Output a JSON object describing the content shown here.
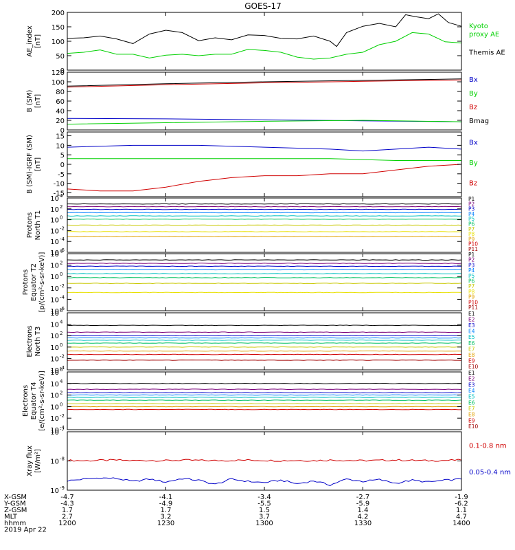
{
  "title": "GOES-17",
  "chart_data": [
    {
      "type": "line",
      "ylabel_lines": [
        "AE_index",
        "[nT]"
      ],
      "ylim": [
        0,
        200
      ],
      "yticks": [
        0,
        50,
        100,
        150,
        200
      ],
      "ytick_labels": [
        "0",
        "50",
        "100",
        "150",
        "200"
      ],
      "series": [
        {
          "name": "Kyoto proxy AE",
          "name_lines": [
            "Kyoto",
            "proxy AE"
          ],
          "color": "#00d000",
          "x": [
            0,
            5,
            10,
            15,
            20,
            25,
            30,
            35,
            40,
            45,
            50,
            55,
            60,
            65,
            70,
            75,
            80,
            85,
            90,
            95,
            100,
            105,
            110,
            115,
            120
          ],
          "y": [
            58,
            62,
            70,
            55,
            55,
            42,
            52,
            55,
            50,
            55,
            55,
            72,
            68,
            62,
            45,
            38,
            42,
            55,
            62,
            88,
            100,
            130,
            125,
            98,
            94
          ]
        },
        {
          "name": "Themis AE",
          "color": "#000000",
          "x": [
            0,
            5,
            10,
            15,
            20,
            25,
            30,
            35,
            40,
            45,
            50,
            55,
            60,
            65,
            70,
            75,
            80,
            82,
            85,
            90,
            95,
            100,
            103,
            106,
            110,
            113,
            116,
            120
          ],
          "y": [
            110,
            112,
            118,
            108,
            92,
            125,
            138,
            130,
            102,
            112,
            105,
            122,
            120,
            110,
            108,
            118,
            100,
            82,
            130,
            152,
            162,
            150,
            192,
            185,
            178,
            195,
            165,
            152
          ]
        }
      ]
    },
    {
      "type": "line",
      "ylabel_lines": [
        "B (SM)",
        "[nT]"
      ],
      "ylim": [
        0,
        120
      ],
      "yticks": [
        0,
        20,
        40,
        60,
        80,
        100,
        120
      ],
      "ytick_labels": [
        "0",
        "20",
        "40",
        "60",
        "80",
        "100",
        "120"
      ],
      "series": [
        {
          "name": "Bx",
          "color": "#0000c8",
          "x": [
            0,
            30,
            60,
            90,
            120
          ],
          "y": [
            24,
            23,
            21,
            19,
            17
          ]
        },
        {
          "name": "By",
          "color": "#00d000",
          "x": [
            0,
            30,
            60,
            90,
            120
          ],
          "y": [
            12,
            15,
            18,
            20,
            17
          ]
        },
        {
          "name": "Bz",
          "color": "#d00000",
          "x": [
            0,
            30,
            60,
            90,
            120
          ],
          "y": [
            89,
            94,
            98,
            101,
            104
          ]
        },
        {
          "name": "Bmag",
          "color": "#000000",
          "x": [
            0,
            30,
            60,
            90,
            120
          ],
          "y": [
            91,
            96,
            100,
            103,
            106
          ]
        }
      ]
    },
    {
      "type": "line",
      "ylabel_lines": [
        "B (SM)-IGRF (SM)",
        "[nT]"
      ],
      "ylim": [
        -17,
        17
      ],
      "yticks": [
        -15,
        -10,
        -5,
        0,
        5,
        10,
        15
      ],
      "ytick_labels": [
        "-15",
        "-10",
        "-5",
        "0",
        "5",
        "10",
        "15"
      ],
      "series": [
        {
          "name": "Bx",
          "color": "#0000c8",
          "x": [
            0,
            20,
            40,
            60,
            80,
            90,
            100,
            110,
            120
          ],
          "y": [
            9,
            10,
            10,
            9,
            8,
            7,
            8,
            9,
            8
          ]
        },
        {
          "name": "By",
          "color": "#00d000",
          "x": [
            0,
            20,
            40,
            60,
            80,
            100,
            120
          ],
          "y": [
            3,
            3,
            3,
            3,
            3,
            2,
            2
          ]
        },
        {
          "name": "Bz",
          "color": "#d00000",
          "x": [
            0,
            10,
            20,
            30,
            40,
            50,
            60,
            70,
            80,
            90,
            100,
            110,
            120
          ],
          "y": [
            -13,
            -14,
            -14,
            -12,
            -9,
            -7,
            -6,
            -6,
            -5,
            -5,
            -3,
            -1,
            0
          ]
        }
      ]
    },
    {
      "type": "line",
      "log": true,
      "ylabel_lines": [
        "Protons",
        "North T1"
      ],
      "ylim": [
        -6,
        4
      ],
      "yticks": [
        -6,
        -4,
        -2,
        0,
        2,
        4
      ],
      "ytick_labels": [
        "10",
        "10",
        "10",
        "10",
        "10",
        "10"
      ],
      "ytick_exp": [
        "-6",
        "-4",
        "-2",
        "0",
        "2",
        "4"
      ],
      "series": [
        {
          "name": "P1",
          "color": "#000000",
          "level": 2.9
        },
        {
          "name": "P2",
          "color": "#7a007a",
          "level": 2.4
        },
        {
          "name": "P3",
          "color": "#0000c8",
          "level": 1.9
        },
        {
          "name": "P4",
          "color": "#0080ff",
          "level": 1.3
        },
        {
          "name": "P5",
          "color": "#00c0c0",
          "level": 0.7
        },
        {
          "name": "P6",
          "color": "#00c060",
          "level": 0.1
        },
        {
          "name": "P7",
          "color": "#c8c800",
          "level": -1.0
        },
        {
          "name": "P8",
          "color": "#e8e000",
          "level": -2.2
        },
        {
          "name": "P9",
          "color": "#e0a000",
          "level": -3.1
        },
        {
          "name": "P10",
          "color": "#d00000",
          "level": -6.5
        },
        {
          "name": "P11",
          "color": "#a00000",
          "level": -6.5
        }
      ]
    },
    {
      "type": "line",
      "log": true,
      "ylabel_lines": [
        "Protons",
        "Equator T2",
        "[p/(cm²-s-sr-keV)]"
      ],
      "ylim": [
        -6,
        4
      ],
      "yticks": [
        -6,
        -4,
        -2,
        0,
        2,
        4
      ],
      "ytick_labels": [
        "10",
        "10",
        "10",
        "10",
        "10",
        "10"
      ],
      "ytick_exp": [
        "-6",
        "-4",
        "-2",
        "0",
        "2",
        "4"
      ],
      "series": [
        {
          "name": "P1",
          "color": "#000000",
          "level": 2.9
        },
        {
          "name": "P2",
          "color": "#7a007a",
          "level": 2.3
        },
        {
          "name": "P3",
          "color": "#0000c8",
          "level": 1.8
        },
        {
          "name": "P4",
          "color": "#0080ff",
          "level": 1.2
        },
        {
          "name": "P5",
          "color": "#00c0c0",
          "level": 0.5
        },
        {
          "name": "P6",
          "color": "#00c060",
          "level": -0.2
        },
        {
          "name": "P7",
          "color": "#c8c800",
          "level": -1.2
        },
        {
          "name": "P8",
          "color": "#e8e000",
          "level": -2.8
        },
        {
          "name": "P9",
          "color": "#e0a000",
          "level": -6.5
        },
        {
          "name": "P10",
          "color": "#d00000",
          "level": -6.5
        },
        {
          "name": "P11",
          "color": "#a00000",
          "level": -6.5
        }
      ]
    },
    {
      "type": "line",
      "log": true,
      "ylabel_lines": [
        "Electrons",
        "North T3"
      ],
      "ylim": [
        -4,
        6
      ],
      "yticks": [
        -4,
        -2,
        0,
        2,
        4,
        6
      ],
      "ytick_labels": [
        "10",
        "10",
        "10",
        "10",
        "10",
        "10"
      ],
      "ytick_exp": [
        "-4",
        "-2",
        "0",
        "2",
        "4",
        "6"
      ],
      "series": [
        {
          "name": "E1",
          "color": "#000000",
          "level": 3.8
        },
        {
          "name": "E2",
          "color": "#7a007a",
          "level": 2.6
        },
        {
          "name": "E3",
          "color": "#0000c8",
          "level": 2.0
        },
        {
          "name": "E4",
          "color": "#0080ff",
          "level": 1.6
        },
        {
          "name": "E5",
          "color": "#00c0c0",
          "level": 1.2
        },
        {
          "name": "E6",
          "color": "#00c060",
          "level": 0.7
        },
        {
          "name": "E7",
          "color": "#c8c800",
          "level": 0.0
        },
        {
          "name": "E8",
          "color": "#e0a000",
          "level": -0.7
        },
        {
          "name": "E9",
          "color": "#d00000",
          "level": -1.3
        },
        {
          "name": "E10",
          "color": "#a00000",
          "level": -2.3
        }
      ]
    },
    {
      "type": "line",
      "log": true,
      "ylabel_lines": [
        "Electrons",
        "Equator T4",
        "[e/(cm²-s-sr-keV)]"
      ],
      "ylim": [
        -4,
        6
      ],
      "yticks": [
        -4,
        -2,
        0,
        2,
        4,
        6
      ],
      "ytick_labels": [
        "10",
        "10",
        "10",
        "10",
        "10",
        "10"
      ],
      "ytick_exp": [
        "-4",
        "-2",
        "0",
        "2",
        "4",
        "6"
      ],
      "series": [
        {
          "name": "E1",
          "color": "#000000",
          "level": 4.0
        },
        {
          "name": "E2",
          "color": "#7a007a",
          "level": 3.0
        },
        {
          "name": "E3",
          "color": "#0000c8",
          "level": 2.4
        },
        {
          "name": "E4",
          "color": "#0080ff",
          "level": 2.0
        },
        {
          "name": "E5",
          "color": "#00c0c0",
          "level": 1.6
        },
        {
          "name": "E6",
          "color": "#00c060",
          "level": 1.1
        },
        {
          "name": "E7",
          "color": "#c8c800",
          "level": 0.5
        },
        {
          "name": "E8",
          "color": "#e0a000",
          "level": 0.0
        },
        {
          "name": "E9",
          "color": "#d00000",
          "level": -0.5
        },
        {
          "name": "E10",
          "color": "#a00000",
          "level": -6.0
        }
      ]
    },
    {
      "type": "line",
      "log": true,
      "ylabel_lines": [
        "Xray flux",
        "[W/m²]"
      ],
      "ylim": [
        -9,
        -7
      ],
      "yticks": [
        -9,
        -8,
        -7
      ],
      "ytick_labels": [
        "10",
        "10",
        "10"
      ],
      "ytick_exp": [
        "-9",
        "-8",
        "-7"
      ],
      "series": [
        {
          "name": "0.1-0.8 nm",
          "color": "#d00000",
          "x": [
            0,
            5,
            10,
            15,
            20,
            25,
            30,
            35,
            40,
            45,
            50,
            55,
            60,
            65,
            70,
            75,
            80,
            85,
            90,
            95,
            100,
            105,
            110,
            115,
            120
          ],
          "y": [
            -7.98,
            -7.99,
            -7.98,
            -7.97,
            -7.99,
            -7.98,
            -7.99,
            -7.97,
            -7.98,
            -7.99,
            -7.98,
            -7.97,
            -7.98,
            -7.99,
            -7.98,
            -7.99,
            -7.97,
            -7.98,
            -7.99,
            -7.98,
            -7.97,
            -7.98,
            -7.99,
            -7.98,
            -7.97
          ]
        },
        {
          "name": "0.05-0.4 nm",
          "color": "#0000c8",
          "x": [
            0,
            5,
            10,
            15,
            20,
            25,
            30,
            35,
            40,
            45,
            50,
            55,
            60,
            65,
            70,
            75,
            80,
            85,
            90,
            95,
            100,
            105,
            110,
            115,
            120
          ],
          "y": [
            -8.68,
            -8.62,
            -8.58,
            -8.6,
            -8.7,
            -8.62,
            -8.72,
            -8.6,
            -8.66,
            -8.8,
            -8.62,
            -8.7,
            -8.74,
            -8.66,
            -8.78,
            -8.68,
            -8.82,
            -8.62,
            -8.7,
            -8.64,
            -8.76,
            -8.66,
            -8.72,
            -8.66,
            -8.62
          ]
        }
      ]
    }
  ],
  "x_axis": {
    "xlim": [
      0,
      120
    ],
    "tick_positions": [
      0,
      30,
      60,
      90,
      120
    ],
    "rows": [
      {
        "label": "X-GSM",
        "values": [
          "-4.7",
          "-4.1",
          "-3.4",
          "-2.7",
          "-1.9"
        ]
      },
      {
        "label": "Y-GSM",
        "values": [
          "-4.3",
          "-4.9",
          "-5.5",
          "-5.9",
          "-6.2"
        ]
      },
      {
        "label": "Z-GSM",
        "values": [
          "1.7",
          "1.7",
          "1.5",
          "1.4",
          "1.1"
        ]
      },
      {
        "label": "MLT",
        "values": [
          "2.7",
          "3.2",
          "3.7",
          "4.2",
          "4.7"
        ]
      },
      {
        "label": "hhmm",
        "values": [
          "1200",
          "1230",
          "1300",
          "1330",
          "1400"
        ]
      }
    ],
    "date": "2019 Apr 22"
  }
}
